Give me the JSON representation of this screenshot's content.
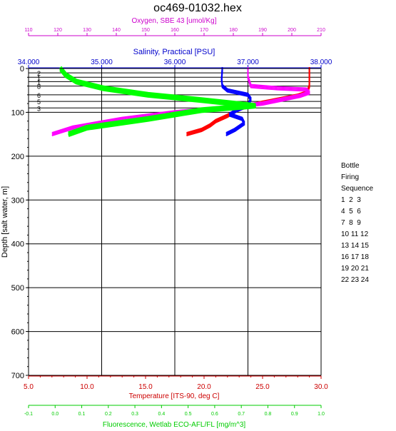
{
  "chart_data": {
    "type": "line",
    "title": "oc469-01032.hex",
    "yaxis": {
      "label": "Depth [salt water, m]",
      "range": [
        0,
        700
      ],
      "ticks": [
        0,
        100,
        200,
        300,
        400,
        500,
        600,
        700
      ],
      "tick_labels": [
        "0",
        "100",
        "200",
        "300",
        "400",
        "500",
        "600",
        "700"
      ],
      "inverted": true
    },
    "axes": {
      "oxygen": {
        "label": "Oxygen, SBE 43 [umol/Kg]",
        "color": "#cc00cc",
        "position": "top",
        "range": [
          110,
          210
        ],
        "ticks": [
          110,
          120,
          130,
          140,
          150,
          160,
          170,
          180,
          190,
          200,
          210
        ],
        "tick_labels": [
          "110",
          "120",
          "130",
          "140",
          "150",
          "160",
          "170",
          "180",
          "190",
          "200",
          "210"
        ]
      },
      "salinity": {
        "label": "Salinity, Practical [PSU]",
        "color": "#0000cc",
        "position": "top",
        "range": [
          34.0,
          38.0
        ],
        "ticks": [
          34.0,
          35.0,
          36.0,
          37.0,
          38.0
        ],
        "tick_labels": [
          "34.000",
          "35.000",
          "36.000",
          "37.000",
          "38.000"
        ]
      },
      "temperature": {
        "label": "Temperature [ITS-90, deg C]",
        "color": "#cc0000",
        "position": "bottom",
        "range": [
          5.0,
          30.0
        ],
        "ticks": [
          5.0,
          10.0,
          15.0,
          20.0,
          25.0,
          30.0
        ],
        "tick_labels": [
          "5.0",
          "10.0",
          "15.0",
          "20.0",
          "25.0",
          "30.0"
        ]
      },
      "fluorescence": {
        "label": "Fluorescence, Wetlab ECO-AFL/FL [mg/m^3]",
        "color": "#00cc00",
        "position": "bottom",
        "range": [
          -0.1,
          1.0
        ],
        "ticks": [
          -0.1,
          0.0,
          0.1,
          0.2,
          0.3,
          0.4,
          0.5,
          0.6,
          0.7,
          0.8,
          0.9,
          1.0
        ],
        "tick_labels": [
          "-0.1",
          "0.0",
          "0.1",
          "0.2",
          "0.3",
          "0.4",
          "0.5",
          "0.6",
          "0.7",
          "0.8",
          "0.9",
          "1.0"
        ]
      }
    },
    "series": [
      {
        "axis": "temperature",
        "color": "#ff0000",
        "x": [
          29.0,
          29.0,
          28.8,
          28.0,
          26.5,
          25.0,
          24.0,
          23.0,
          22.5,
          22.0,
          21.0,
          20.5,
          19.8,
          18.5
        ],
        "y": [
          0,
          40,
          55,
          62,
          70,
          78,
          84,
          92,
          100,
          108,
          120,
          130,
          140,
          150
        ]
      },
      {
        "axis": "salinity",
        "color": "#0000ff",
        "x": [
          36.65,
          36.64,
          36.65,
          36.72,
          37.0,
          37.04,
          37.0,
          36.85,
          36.75,
          36.92,
          36.95,
          36.82,
          36.7
        ],
        "y": [
          0,
          25,
          40,
          50,
          60,
          70,
          84,
          95,
          105,
          115,
          125,
          140,
          150
        ]
      },
      {
        "axis": "oxygen",
        "color": "#ff00ff",
        "x": [
          185,
          185,
          186,
          195,
          205,
          206,
          203,
          190,
          176,
          160,
          142,
          125,
          118
        ],
        "y": [
          0,
          20,
          40,
          45,
          48,
          55,
          62,
          80,
          90,
          100,
          115,
          135,
          150
        ]
      },
      {
        "axis": "fluorescence",
        "color": "#00ff00",
        "x": [
          0.02,
          0.04,
          0.08,
          0.18,
          0.35,
          0.55,
          0.75,
          0.55,
          0.35,
          0.12,
          0.05
        ],
        "y": [
          0,
          15,
          30,
          45,
          60,
          72,
          85,
          95,
          115,
          135,
          150
        ]
      }
    ],
    "bottle_lines": {
      "depths": [
        10,
        20,
        30,
        40,
        60,
        75,
        90
      ],
      "labels": [
        "2",
        "1",
        "1",
        "8",
        "6",
        "5",
        "3"
      ]
    },
    "legend": {
      "title_lines": [
        "Bottle",
        "Firing",
        "Sequence"
      ],
      "rows": [
        "1  2  3",
        "4  5  6",
        "7  8  9",
        "10 11 12",
        "13 14 15",
        "16 17 18",
        "19 20 21",
        "22 23 24"
      ]
    },
    "grid": true
  }
}
